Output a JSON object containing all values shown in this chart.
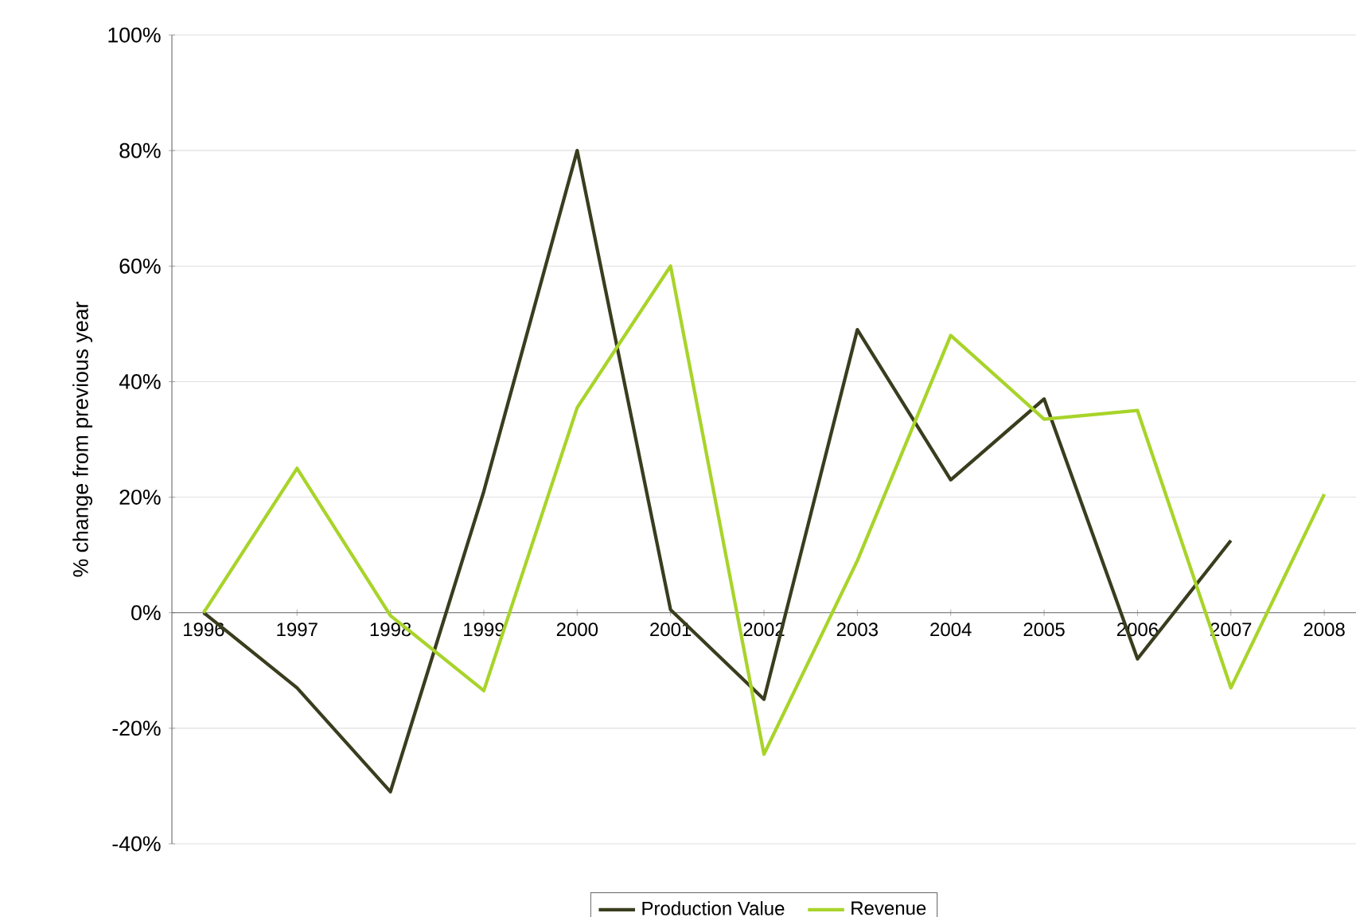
{
  "chart_data": {
    "type": "line",
    "ylabel": "% change from previous year",
    "categories": [
      "1996",
      "1997",
      "1998",
      "1999",
      "2000",
      "2001",
      "2002",
      "2003",
      "2004",
      "2005",
      "2006",
      "2007",
      "2008"
    ],
    "series": [
      {
        "name": "Production Value",
        "color": "#3a3d1e",
        "values": [
          0,
          -13,
          -31,
          21,
          80,
          0.5,
          -15,
          49,
          23,
          37,
          -8,
          12.5,
          null
        ]
      },
      {
        "name": "Revenue",
        "color": "#a8d42a",
        "values": [
          0,
          25,
          -0.5,
          -13.5,
          35.5,
          60,
          -24.5,
          9,
          48,
          33.5,
          35,
          -13,
          20.5
        ]
      }
    ],
    "ylim": [
      -40,
      100
    ],
    "yticks": [
      {
        "value": -40,
        "label": "-40%"
      },
      {
        "value": -20,
        "label": "-20%"
      },
      {
        "value": 0,
        "label": "0%"
      },
      {
        "value": 20,
        "label": "20%"
      },
      {
        "value": 40,
        "label": "40%"
      },
      {
        "value": 60,
        "label": "60%"
      },
      {
        "value": 80,
        "label": "80%"
      },
      {
        "value": 100,
        "label": "100%"
      }
    ],
    "grid": "y",
    "legend": "bottom",
    "marker": "none",
    "line_style": "solid"
  }
}
